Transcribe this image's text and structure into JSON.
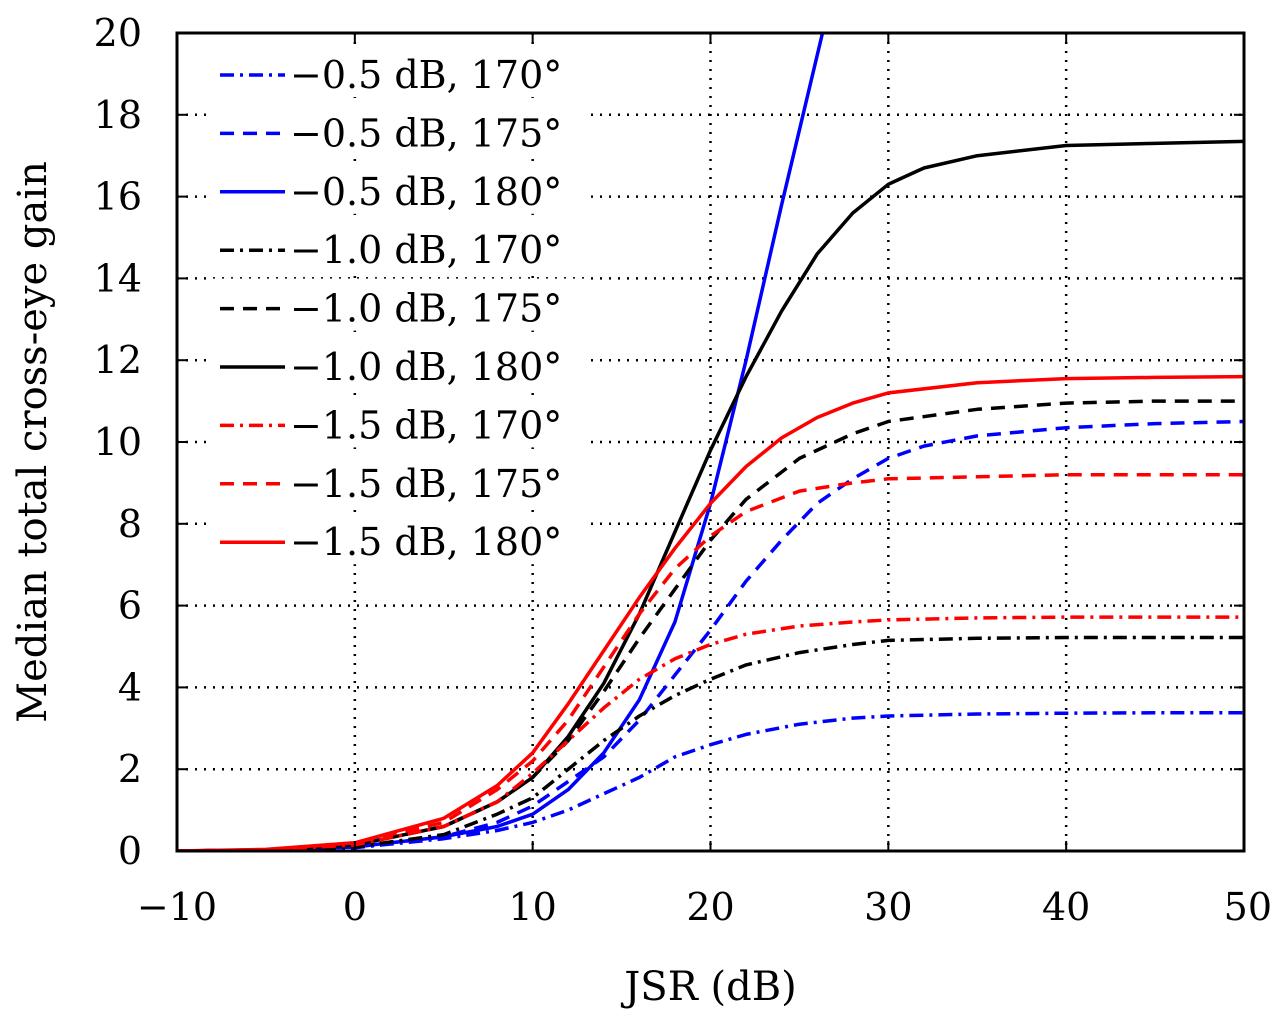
{
  "chart_data": {
    "type": "line",
    "xlabel": "JSR (dB)",
    "ylabel": "Median total cross-eye gain",
    "xlim": [
      -10,
      50
    ],
    "ylim": [
      0,
      20
    ],
    "xticks": [
      -10,
      0,
      10,
      20,
      30,
      40,
      50
    ],
    "yticks": [
      0,
      2,
      4,
      6,
      8,
      10,
      12,
      14,
      16,
      18,
      20
    ],
    "xtick_labels": [
      "−10",
      "0",
      "10",
      "20",
      "30",
      "40",
      "50"
    ],
    "ytick_labels": [
      "0",
      "2",
      "4",
      "6",
      "8",
      "10",
      "12",
      "14",
      "16",
      "18",
      "20"
    ],
    "grid": true,
    "legend_position": "top-left",
    "series": [
      {
        "name": "−0.5 dB, 170°",
        "color": "#0000ff",
        "dash": "dashdot",
        "x": [
          -10,
          -5,
          0,
          5,
          8,
          10,
          12,
          14,
          16,
          18,
          20,
          22,
          25,
          28,
          30,
          35,
          40,
          45,
          50
        ],
        "y": [
          0,
          0.01,
          0.08,
          0.3,
          0.5,
          0.7,
          1.0,
          1.4,
          1.8,
          2.3,
          2.6,
          2.85,
          3.1,
          3.25,
          3.3,
          3.35,
          3.37,
          3.38,
          3.38
        ]
      },
      {
        "name": "−0.5 dB, 175°",
        "color": "#0000ff",
        "dash": "dashed",
        "x": [
          -10,
          -5,
          0,
          5,
          8,
          10,
          12,
          14,
          16,
          18,
          20,
          22,
          24,
          26,
          28,
          30,
          32,
          35,
          40,
          45,
          50
        ],
        "y": [
          0,
          0.02,
          0.1,
          0.35,
          0.7,
          1.1,
          1.7,
          2.3,
          3.2,
          4.3,
          5.4,
          6.6,
          7.6,
          8.5,
          9.1,
          9.6,
          9.9,
          10.15,
          10.35,
          10.45,
          10.5
        ]
      },
      {
        "name": "−0.5 dB, 180°",
        "color": "#0000ff",
        "dash": "solid",
        "x": [
          -10,
          -5,
          0,
          5,
          8,
          10,
          12,
          14,
          16,
          18,
          20,
          22,
          24,
          26.3
        ],
        "y": [
          0,
          0.02,
          0.1,
          0.35,
          0.6,
          0.9,
          1.5,
          2.4,
          3.7,
          5.6,
          8.5,
          12.0,
          15.8,
          20
        ]
      },
      {
        "name": "−1.0 dB, 170°",
        "color": "#000000",
        "dash": "dashdot",
        "x": [
          -10,
          -5,
          0,
          5,
          8,
          10,
          12,
          14,
          16,
          18,
          20,
          22,
          25,
          28,
          30,
          35,
          40,
          45,
          50
        ],
        "y": [
          0,
          0.02,
          0.1,
          0.4,
          0.9,
          1.3,
          2.0,
          2.7,
          3.3,
          3.8,
          4.2,
          4.55,
          4.85,
          5.05,
          5.15,
          5.2,
          5.22,
          5.22,
          5.22
        ]
      },
      {
        "name": "−1.0 dB, 175°",
        "color": "#000000",
        "dash": "dashed",
        "x": [
          -10,
          -5,
          0,
          5,
          8,
          10,
          12,
          14,
          16,
          18,
          20,
          22,
          25,
          28,
          30,
          35,
          40,
          45,
          50
        ],
        "y": [
          0,
          0.03,
          0.15,
          0.6,
          1.2,
          1.8,
          2.7,
          3.9,
          5.2,
          6.4,
          7.6,
          8.6,
          9.6,
          10.2,
          10.5,
          10.8,
          10.95,
          11.0,
          11.0
        ]
      },
      {
        "name": "−1.0 dB, 180°",
        "color": "#000000",
        "dash": "solid",
        "x": [
          -10,
          -5,
          0,
          5,
          8,
          10,
          12,
          14,
          16,
          18,
          20,
          22,
          24,
          26,
          28,
          30,
          32,
          35,
          40,
          45,
          50
        ],
        "y": [
          0,
          0.03,
          0.15,
          0.6,
          1.2,
          1.8,
          2.8,
          4.1,
          5.8,
          7.8,
          9.8,
          11.6,
          13.2,
          14.6,
          15.6,
          16.3,
          16.7,
          17.0,
          17.25,
          17.3,
          17.35
        ]
      },
      {
        "name": "−1.5 dB, 170°",
        "color": "#ff0000",
        "dash": "dashdot",
        "x": [
          -10,
          -5,
          0,
          5,
          8,
          10,
          12,
          14,
          16,
          18,
          20,
          22,
          25,
          28,
          30,
          35,
          40,
          45,
          50
        ],
        "y": [
          0,
          0.03,
          0.15,
          0.6,
          1.2,
          1.9,
          2.7,
          3.5,
          4.2,
          4.7,
          5.05,
          5.3,
          5.5,
          5.6,
          5.65,
          5.7,
          5.72,
          5.72,
          5.72
        ]
      },
      {
        "name": "−1.5 dB, 175°",
        "color": "#ff0000",
        "dash": "dashed",
        "x": [
          -10,
          -5,
          0,
          5,
          8,
          10,
          12,
          14,
          16,
          18,
          20,
          22,
          25,
          28,
          30,
          35,
          40,
          45,
          50
        ],
        "y": [
          0,
          0.03,
          0.2,
          0.7,
          1.5,
          2.2,
          3.2,
          4.5,
          5.8,
          6.9,
          7.7,
          8.3,
          8.8,
          9.0,
          9.1,
          9.15,
          9.2,
          9.2,
          9.2
        ]
      },
      {
        "name": "−1.5 dB, 180°",
        "color": "#ff0000",
        "dash": "solid",
        "x": [
          -10,
          -5,
          0,
          5,
          8,
          10,
          12,
          14,
          16,
          18,
          20,
          22,
          24,
          26,
          28,
          30,
          35,
          40,
          45,
          50
        ],
        "y": [
          0,
          0.04,
          0.2,
          0.8,
          1.6,
          2.4,
          3.6,
          4.9,
          6.2,
          7.4,
          8.5,
          9.4,
          10.1,
          10.6,
          10.95,
          11.2,
          11.45,
          11.55,
          11.58,
          11.6
        ]
      }
    ]
  }
}
